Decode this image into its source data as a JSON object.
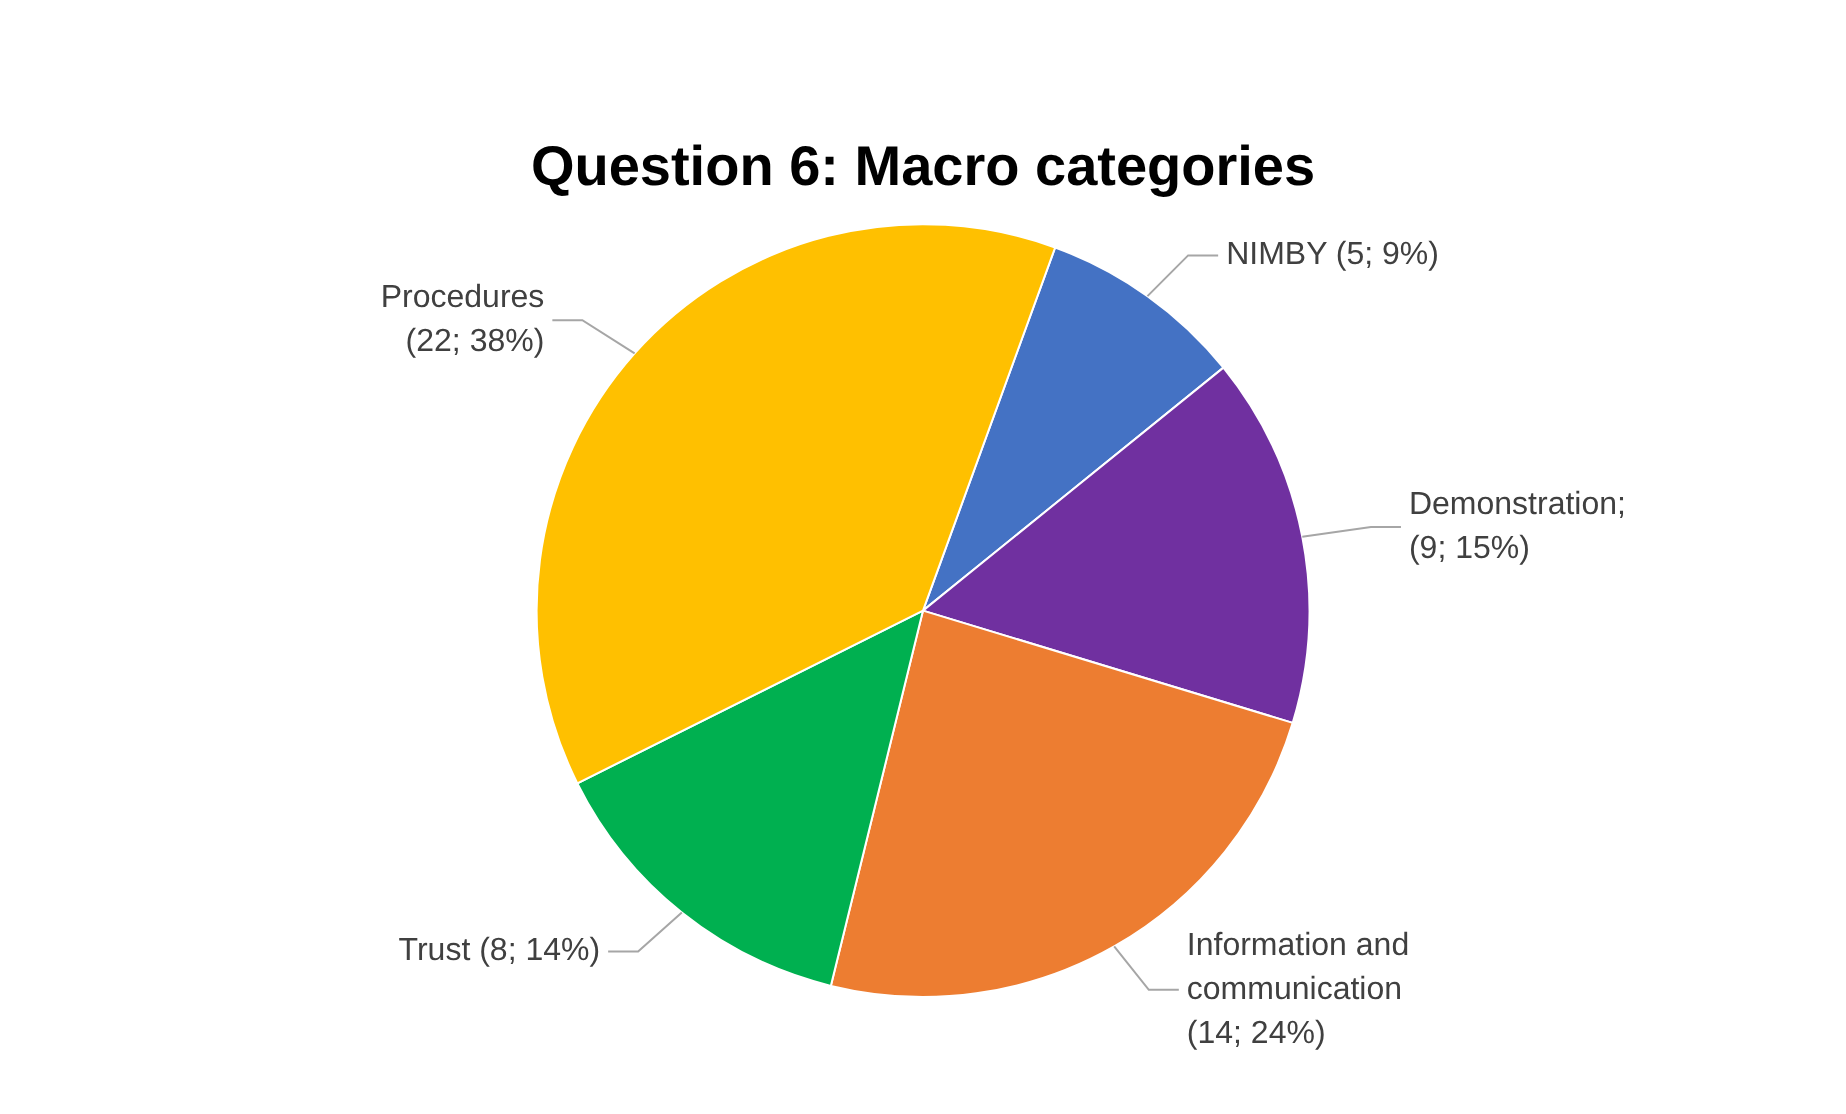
{
  "chart_data": {
    "type": "pie",
    "title": "Question 6: Macro categories",
    "categories": [
      "NIMBY (5; 9%)",
      "Demonstration; (9; 15%)",
      "Information and communication (14; 24%)",
      "Trust (8; 14%)",
      "Procedures (22; 38%)"
    ],
    "values": [
      5,
      9,
      14,
      8,
      22
    ],
    "colors": [
      "#4472c4",
      "#7030a0",
      "#ed7d31",
      "#00b050",
      "#ffc000"
    ]
  }
}
